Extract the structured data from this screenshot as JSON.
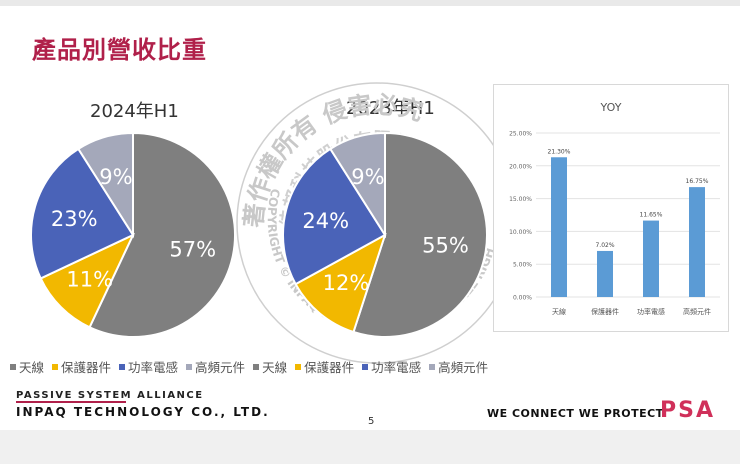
{
  "slide_title": "產品別營收比重",
  "colors": {
    "antenna": "#7f7f7f",
    "protection": "#f2b800",
    "power": "#4a63b8",
    "rf": "#a4a8ba",
    "accent": "#b0204a",
    "bar": "#5b9bd5"
  },
  "watermark": {
    "top": "著作權所有 侵害必究",
    "inner": "佳邦科技股份有限公司",
    "bottom": "COPYRIGHT © INPAQ TECHNOLOGY CO., LTD ALL RIGHT RESERVED"
  },
  "chart_data": [
    {
      "type": "pie",
      "title": "2024年H1",
      "labels": [
        "天線",
        "保護器件",
        "功率電感",
        "高頻元件"
      ],
      "values": [
        57,
        11,
        23,
        9
      ],
      "value_labels": [
        "57%",
        "11%",
        "23%",
        "9%"
      ]
    },
    {
      "type": "pie",
      "title": "2023年H1",
      "labels": [
        "天線",
        "保護器件",
        "功率電感",
        "高頻元件"
      ],
      "values": [
        55,
        12,
        24,
        9
      ],
      "value_labels": [
        "55%",
        "12%",
        "24%",
        "9%"
      ]
    },
    {
      "type": "bar",
      "title": "YOY",
      "categories": [
        "天線",
        "保護器件",
        "功率電感",
        "高頻元件"
      ],
      "values": [
        21.3,
        7.02,
        11.65,
        16.75
      ],
      "value_labels": [
        "21.30%",
        "7.02%",
        "11.65%",
        "16.75%"
      ],
      "ylim": [
        0,
        25
      ],
      "yticks": [
        "0.00%",
        "5.00%",
        "10.00%",
        "15.00%",
        "20.00%",
        "25.00%"
      ]
    }
  ],
  "legend": [
    "天線",
    "保護器件",
    "功率電感",
    "高頻元件",
    "天線",
    "保護器件",
    "功率電感",
    "高頻元件"
  ],
  "footer": {
    "alliance": "PASSIVE SYSTEM ALLIANCE",
    "company": "INPAQ TECHNOLOGY CO., LTD.",
    "slogan": "WE CONNECT WE PROTECT",
    "brand": "PSA",
    "page": "5"
  }
}
